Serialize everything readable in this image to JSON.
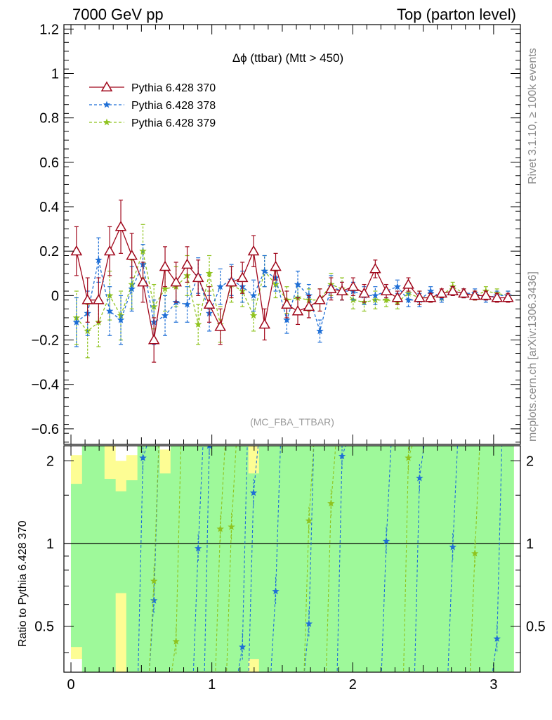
{
  "header": {
    "energy_label": "7000 GeV pp",
    "process_label": "Top (parton level)"
  },
  "side_labels": {
    "rivet": "Rivet 3.1.10, ≥ 100k events",
    "source": "mcplots.cern.ch [arXiv:1306.3436]"
  },
  "chart_data": [
    {
      "type": "line",
      "title": "Δϕ (ttbar) (Mtt > 450)",
      "watermark": "(MC_FBA_TTBAR)",
      "xlim": [
        -0.05,
        3.19
      ],
      "ylim": [
        -0.67,
        1.22
      ],
      "yticks": [
        -0.6,
        -0.4,
        -0.2,
        0,
        0.2,
        0.4,
        0.6,
        0.8,
        1,
        1.2
      ],
      "ytick_labels": [
        "−0.6",
        "−0.4",
        "−0.2",
        "0",
        "0.2",
        "0.4",
        "0.6",
        "0.8",
        "1",
        "1.2"
      ],
      "legend_position": "top-left",
      "series": [
        {
          "name": "Pythia 6.428 370",
          "color": "#a0081c",
          "marker": "open-triangle",
          "line": "solid",
          "x": [
            0.039,
            0.118,
            0.196,
            0.275,
            0.354,
            0.432,
            0.511,
            0.589,
            0.668,
            0.746,
            0.825,
            0.903,
            0.982,
            1.06,
            1.139,
            1.217,
            1.296,
            1.374,
            1.453,
            1.532,
            1.61,
            1.689,
            1.767,
            1.846,
            1.924,
            2.003,
            2.081,
            2.16,
            2.238,
            2.317,
            2.395,
            2.474,
            2.553,
            2.631,
            2.71,
            2.788,
            2.867,
            2.945,
            3.024,
            3.102
          ],
          "y": [
            0.2,
            -0.02,
            -0.02,
            0.2,
            0.31,
            0.18,
            0.06,
            -0.2,
            0.13,
            0.06,
            0.14,
            0.08,
            -0.04,
            -0.14,
            0.06,
            0.08,
            0.2,
            -0.13,
            0.13,
            -0.04,
            -0.07,
            -0.05,
            -0.02,
            0.03,
            0.02,
            0.04,
            0.01,
            0.12,
            0.02,
            -0.01,
            0.05,
            -0.01,
            -0.01,
            0.01,
            0.02,
            0.01,
            0.0,
            0.0,
            -0.01,
            -0.01
          ],
          "err": [
            0.11,
            0.1,
            0.1,
            0.11,
            0.12,
            0.1,
            0.09,
            0.1,
            0.09,
            0.09,
            0.08,
            0.08,
            0.08,
            0.08,
            0.07,
            0.07,
            0.07,
            0.07,
            0.06,
            0.06,
            0.06,
            0.05,
            0.05,
            0.05,
            0.04,
            0.04,
            0.04,
            0.04,
            0.03,
            0.03,
            0.03,
            0.03,
            0.02,
            0.02,
            0.02,
            0.02,
            0.02,
            0.02,
            0.02,
            0.02
          ]
        },
        {
          "name": "Pythia 6.428 378",
          "color": "#1f6fd6",
          "marker": "star",
          "line": "dashed",
          "x": [
            0.039,
            0.118,
            0.196,
            0.275,
            0.354,
            0.432,
            0.511,
            0.589,
            0.668,
            0.746,
            0.825,
            0.903,
            0.982,
            1.06,
            1.139,
            1.217,
            1.296,
            1.374,
            1.453,
            1.532,
            1.61,
            1.689,
            1.767,
            1.846,
            1.924,
            2.003,
            2.081,
            2.16,
            2.238,
            2.317,
            2.395,
            2.474,
            2.553,
            2.631,
            2.71,
            2.788,
            2.867,
            2.945,
            3.024,
            3.102
          ],
          "y": [
            -0.12,
            -0.08,
            0.16,
            -0.07,
            -0.11,
            0.03,
            0.14,
            -0.12,
            -0.09,
            -0.03,
            -0.04,
            0.09,
            -0.08,
            0.04,
            0.07,
            0.04,
            0.0,
            0.11,
            0.08,
            -0.11,
            0.05,
            0.0,
            -0.16,
            0.04,
            0.02,
            0.02,
            0.0,
            0.0,
            0.02,
            0.04,
            -0.02,
            -0.02,
            0.02,
            -0.01,
            0.02,
            0.01,
            0.01,
            -0.01,
            0.0,
            0.0
          ],
          "err": [
            0.11,
            0.1,
            0.1,
            0.11,
            0.11,
            0.1,
            0.09,
            0.1,
            0.09,
            0.09,
            0.08,
            0.08,
            0.08,
            0.08,
            0.07,
            0.07,
            0.07,
            0.07,
            0.06,
            0.06,
            0.06,
            0.05,
            0.05,
            0.05,
            0.04,
            0.04,
            0.04,
            0.04,
            0.03,
            0.03,
            0.03,
            0.03,
            0.02,
            0.02,
            0.02,
            0.02,
            0.02,
            0.02,
            0.02,
            0.02
          ]
        },
        {
          "name": "Pythia 6.428 379",
          "color": "#8fc31f",
          "marker": "star",
          "line": "dashed",
          "x": [
            0.039,
            0.118,
            0.196,
            0.275,
            0.354,
            0.432,
            0.511,
            0.589,
            0.668,
            0.746,
            0.825,
            0.903,
            0.982,
            1.06,
            1.139,
            1.217,
            1.296,
            1.374,
            1.453,
            1.532,
            1.61,
            1.689,
            1.767,
            1.846,
            1.924,
            2.003,
            2.081,
            2.16,
            2.238,
            2.317,
            2.395,
            2.474,
            2.553,
            2.631,
            2.71,
            2.788,
            2.867,
            2.945,
            3.024,
            3.102
          ],
          "y": [
            -0.1,
            -0.16,
            -0.12,
            0.0,
            -0.09,
            0.05,
            0.2,
            -0.05,
            0.03,
            0.04,
            0.09,
            -0.13,
            0.1,
            -0.13,
            0.05,
            0.02,
            -0.09,
            0.11,
            0.05,
            -0.02,
            -0.01,
            -0.02,
            -0.02,
            0.05,
            0.03,
            -0.02,
            -0.03,
            -0.02,
            -0.02,
            -0.03,
            0.01,
            -0.01,
            -0.01,
            0.0,
            0.04,
            0.01,
            0.0,
            0.02,
            0.01,
            0.0
          ],
          "err": [
            0.12,
            0.12,
            0.11,
            0.11,
            0.11,
            0.11,
            0.12,
            0.1,
            0.1,
            0.09,
            0.09,
            0.09,
            0.08,
            0.08,
            0.08,
            0.07,
            0.07,
            0.07,
            0.06,
            0.06,
            0.06,
            0.05,
            0.05,
            0.05,
            0.05,
            0.04,
            0.04,
            0.04,
            0.03,
            0.03,
            0.03,
            0.03,
            0.02,
            0.02,
            0.02,
            0.02,
            0.02,
            0.02,
            0.02,
            0.02
          ]
        }
      ]
    },
    {
      "type": "line",
      "title": "",
      "ylabel": "Ratio to Pythia 6.428 370",
      "xlim": [
        -0.05,
        3.19
      ],
      "ylim": [
        0.34,
        2.27
      ],
      "xticks": [
        0,
        1,
        2,
        3
      ],
      "xtick_labels": [
        "0",
        "1",
        "2",
        "3"
      ],
      "yticks": [
        0.5,
        1,
        2
      ],
      "ytick_labels": [
        "0.5",
        "1",
        "2"
      ],
      "reference_line": 1,
      "bands": {
        "colors": [
          "#fdfd94",
          "#9ef99a"
        ],
        "yellow_lo": [
          0.38,
          0.34,
          0.34,
          0.34,
          0.34,
          0.34,
          0.34,
          0.34,
          0.34,
          0.34,
          0.34,
          0.34,
          0.34,
          0.34,
          0.34,
          0.34,
          0.34,
          0.34,
          0.34,
          0.34,
          0.34,
          0.34,
          0.34,
          0.34,
          0.34,
          0.34,
          0.34,
          0.34,
          0.34,
          0.34,
          0.34,
          0.34,
          0.34,
          0.34,
          0.34,
          0.34,
          0.34,
          0.34,
          0.34,
          0.34
        ],
        "yellow_hi": [
          2.1,
          2.27,
          2.27,
          2.27,
          2.0,
          2.1,
          2.27,
          2.27,
          2.2,
          2.27,
          2.27,
          2.27,
          2.27,
          2.27,
          2.27,
          2.27,
          2.27,
          2.27,
          2.27,
          2.27,
          2.27,
          2.27,
          2.27,
          2.27,
          2.27,
          2.27,
          2.27,
          2.27,
          2.27,
          2.27,
          2.27,
          2.27,
          2.27,
          2.27,
          2.27,
          2.27,
          2.27,
          2.27,
          2.27,
          2.27
        ],
        "green_lo": [
          0.42,
          0.34,
          0.34,
          0.34,
          0.66,
          0.34,
          0.34,
          0.34,
          0.34,
          0.34,
          0.34,
          0.34,
          0.34,
          0.34,
          0.34,
          0.34,
          0.38,
          0.34,
          0.34,
          0.34,
          0.34,
          0.34,
          0.34,
          0.34,
          0.34,
          0.34,
          0.34,
          0.34,
          0.34,
          0.34,
          0.34,
          0.34,
          0.34,
          0.34,
          0.34,
          0.34,
          0.34,
          0.34,
          0.34,
          0.34
        ],
        "green_hi": [
          1.65,
          2.27,
          2.27,
          1.72,
          1.55,
          1.7,
          2.27,
          2.27,
          1.8,
          2.27,
          2.27,
          2.27,
          2.27,
          2.27,
          2.27,
          2.27,
          1.8,
          2.27,
          2.27,
          2.27,
          2.27,
          2.27,
          2.27,
          2.27,
          2.27,
          2.27,
          2.27,
          2.27,
          2.27,
          2.27,
          2.27,
          2.27,
          2.27,
          2.27,
          2.27,
          2.27,
          2.27,
          2.27,
          2.27,
          2.27
        ]
      },
      "series": [
        {
          "name": "Pythia 6.428 378",
          "color": "#1f6fd6",
          "x": [
            0.511,
            0.589,
            0.903,
            0.982,
            1.217,
            1.296,
            1.453,
            1.689,
            1.924,
            2.238,
            2.474,
            2.71,
            3.024
          ],
          "y": [
            2.05,
            0.62,
            0.96,
            2.27,
            0.42,
            1.53,
            0.67,
            0.51,
            2.08,
            1.02,
            1.73,
            0.97,
            0.45
          ]
        },
        {
          "name": "Pythia 6.428 379",
          "color": "#8fc31f",
          "x": [
            0.589,
            0.746,
            1.06,
            1.139,
            1.689,
            1.846,
            2.395,
            2.867
          ],
          "y": [
            0.73,
            0.44,
            1.13,
            1.15,
            1.21,
            1.4,
            2.05,
            0.92
          ]
        }
      ]
    }
  ]
}
